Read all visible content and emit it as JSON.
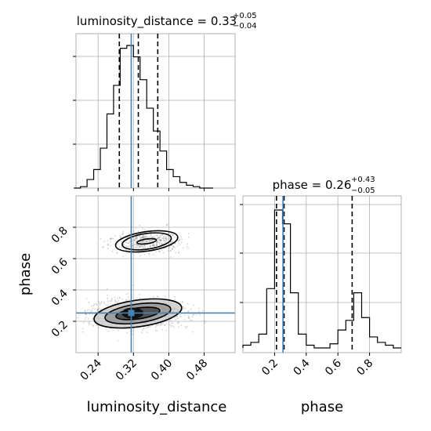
{
  "chart_data": {
    "type": "corner",
    "parameters": [
      "luminosity_distance",
      "phase"
    ],
    "truths": {
      "luminosity_distance": 0.315,
      "phase": 0.253
    },
    "panels": {
      "ld_hist": {
        "title_param": "luminosity_distance",
        "title_value": "0.33",
        "title_plus": "+0.05",
        "title_minus": "−0.04",
        "quantiles": [
          0.288,
          0.331,
          0.375
        ],
        "xlim": [
          0.19,
          0.55
        ],
        "bin_edges": [
          0.185,
          0.2,
          0.215,
          0.23,
          0.245,
          0.26,
          0.275,
          0.29,
          0.305,
          0.32,
          0.335,
          0.35,
          0.365,
          0.38,
          0.395,
          0.41,
          0.425,
          0.44,
          0.455,
          0.47,
          0.485,
          0.5
        ],
        "density": [
          0,
          0.01,
          0.06,
          0.13,
          0.28,
          0.52,
          0.72,
          0.98,
          1.0,
          0.92,
          0.76,
          0.56,
          0.4,
          0.26,
          0.13,
          0.08,
          0.04,
          0.02,
          0.01,
          0,
          0
        ]
      },
      "phase_hist": {
        "title_param": "phase",
        "title_value": "0.26",
        "title_plus": "+0.43",
        "title_minus": "−0.05",
        "quantiles": [
          0.212,
          0.26,
          0.69
        ],
        "xlim": [
          0.0,
          1.0
        ],
        "bin_edges": [
          0.0,
          0.05,
          0.1,
          0.15,
          0.2,
          0.25,
          0.3,
          0.35,
          0.4,
          0.45,
          0.5,
          0.55,
          0.6,
          0.65,
          0.7,
          0.75,
          0.8,
          0.85,
          0.9,
          0.95,
          1.0
        ],
        "density": [
          0.02,
          0.04,
          0.1,
          0.43,
          1.0,
          0.9,
          0.4,
          0.1,
          0.02,
          0.0,
          0.0,
          0.03,
          0.13,
          0.2,
          0.4,
          0.22,
          0.08,
          0.04,
          0.02,
          0.0
        ]
      },
      "joint": {
        "xlim": [
          0.19,
          0.55
        ],
        "ylim": [
          0.0,
          1.0
        ],
        "modes": [
          {
            "cx": 0.33,
            "cy": 0.25,
            "rx": [
              0.05,
              0.075,
              0.1
            ],
            "ry": [
              0.035,
              0.06,
              0.085
            ]
          },
          {
            "cx": 0.35,
            "cy": 0.71,
            "rx": [
              0.022,
              0.056,
              0.071
            ],
            "ry": [
              0.015,
              0.05,
              0.062
            ]
          }
        ]
      }
    },
    "ticks": {
      "luminosity_distance": [
        "0.24",
        "0.32",
        "0.40",
        "0.48"
      ],
      "phase": [
        "0.2",
        "0.4",
        "0.6",
        "0.8"
      ]
    },
    "axis_labels": {
      "x_left": "luminosity_distance",
      "x_right": "phase",
      "y_bottom": "phase"
    },
    "colors": {
      "truth": "#4682b4",
      "hist": "#000000",
      "grid": "#b0b0b0"
    }
  }
}
